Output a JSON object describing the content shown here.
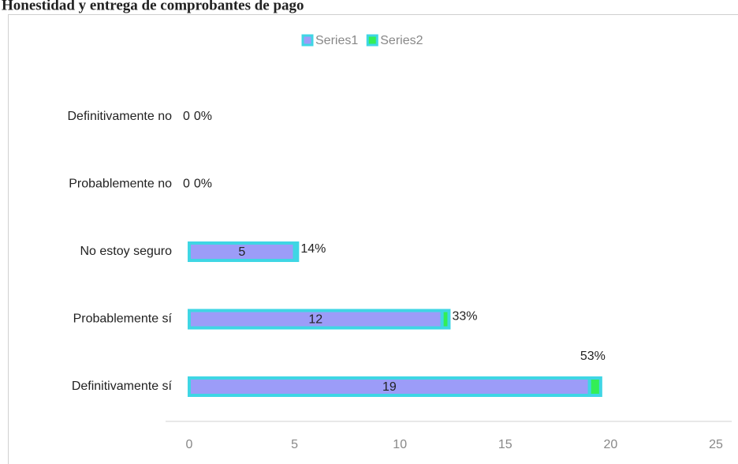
{
  "chart_data": {
    "type": "hbar_stacked",
    "title": "Honestidad y entrega de comprobantes de pago",
    "categories": [
      "Definitivamente no",
      "Probablemente no",
      "No estoy seguro",
      "Probablemente sí",
      "Definitivamente sí"
    ],
    "series": [
      {
        "name": "Series1",
        "color": "#9c9cf8",
        "values": [
          0,
          0,
          5,
          12,
          19
        ]
      },
      {
        "name": "Series2",
        "color": "#33ee55",
        "values": [
          0,
          0,
          0.14,
          0.33,
          0.53
        ],
        "value_labels": [
          "0%",
          "0%",
          "14%",
          "33%",
          "53%"
        ]
      }
    ],
    "edgecolor": "#3fd6e4",
    "xlim": [
      0,
      25
    ],
    "xticks": [
      0,
      5,
      10,
      15,
      20,
      25
    ],
    "legend": "top"
  }
}
